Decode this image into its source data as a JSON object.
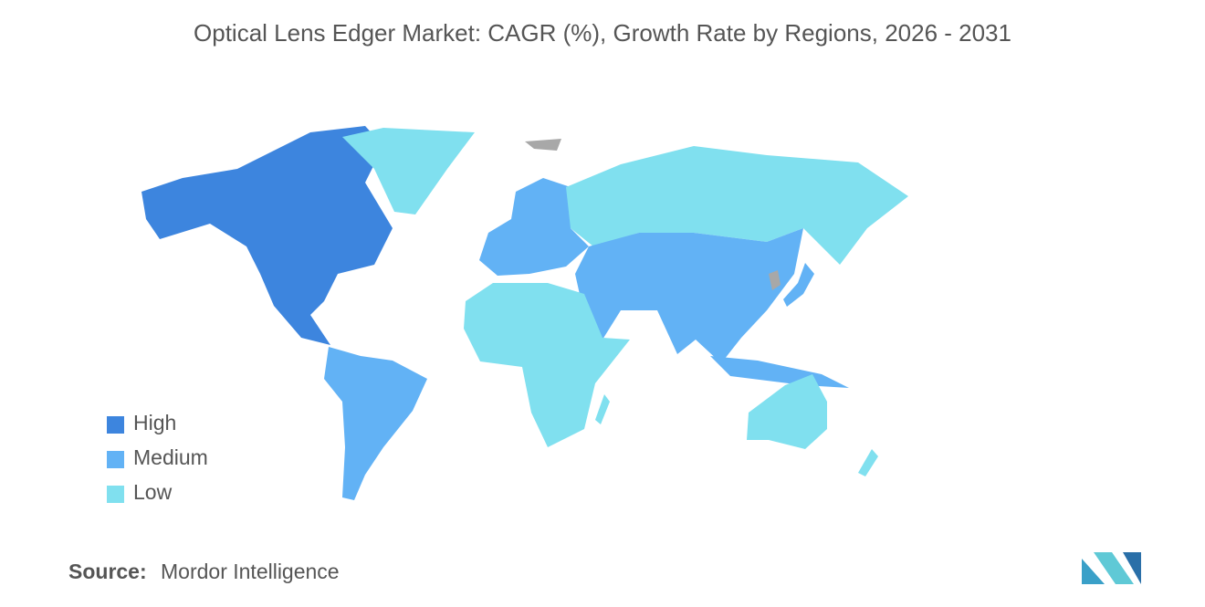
{
  "title": "Optical Lens Edger Market: CAGR (%), Growth Rate by Regions, 2026 - 2031",
  "legend": [
    {
      "name": "High",
      "color": "#3d85de"
    },
    {
      "name": "Medium",
      "color": "#62b2f5"
    },
    {
      "name": "Low",
      "color": "#80e0ef"
    }
  ],
  "source": {
    "label": "Source:",
    "text": "Mordor Intelligence"
  }
}
